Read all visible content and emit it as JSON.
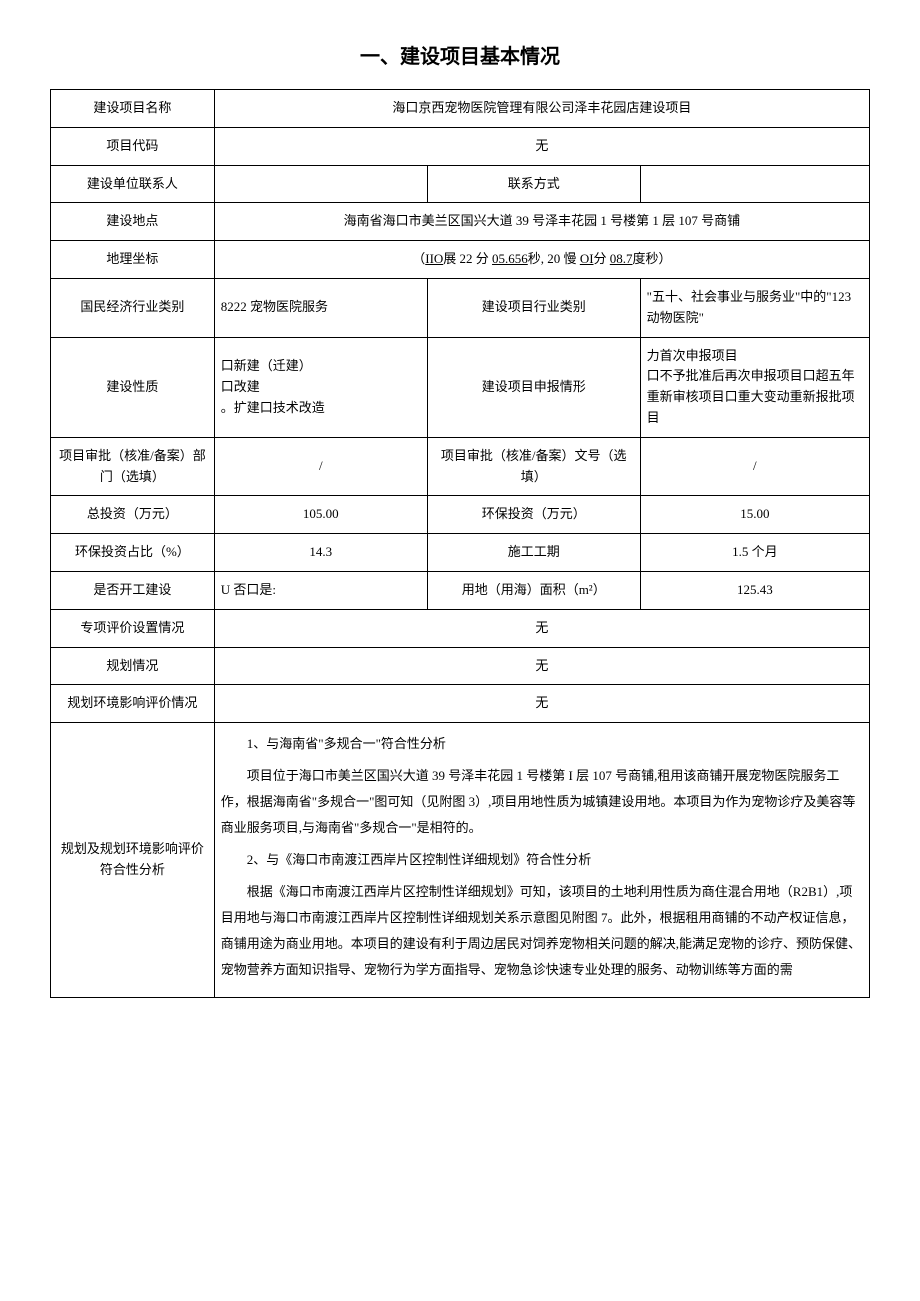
{
  "title": "一、建设项目基本情况",
  "rows": {
    "project_name_label": "建设项目名称",
    "project_name_value": "海口京西宠物医院管理有限公司泽丰花园店建设项目",
    "project_code_label": "项目代码",
    "project_code_value": "无",
    "contact_person_label": "建设单位联系人",
    "contact_person_value": "",
    "contact_method_label": "联系方式",
    "contact_method_value": "",
    "location_label": "建设地点",
    "location_value": "海南省海口市美兰区国兴大道 39 号泽丰花园 1 号楼第 1 层 107 号商铺",
    "coord_label": "地理坐标",
    "coord_prefix": "（",
    "coord_p1": "IIO",
    "coord_p2": "展 22 分 ",
    "coord_p3": "05.656",
    "coord_p4": "秒, 20 慢 ",
    "coord_p5": "OI",
    "coord_p6": "分 ",
    "coord_p7": "08.7",
    "coord_p8": "度秒）",
    "industry_label": "国民经济行业类别",
    "industry_value": "8222 宠物医院服务",
    "proj_industry_label": "建设项目行业类别",
    "proj_industry_value": "\"五十、社会事业与服务业\"中的\"123 动物医院\"",
    "nature_label": "建设性质",
    "nature_line1": "口新建（迁建）",
    "nature_line2": "口改建",
    "nature_line3": "。扩建口技术改造",
    "declare_label": "建设项目申报情形",
    "declare_line1": "力首次申报项目",
    "declare_line2": "口不予批准后再次申报项目口超五年重新审核项目口重大变动重新报批项目",
    "approve_dept_label": "项目审批（核准/备案）部门（选填）",
    "approve_dept_value": "/",
    "approve_no_label": "项目审批（核准/备案）文号（选填）",
    "approve_no_value": "/",
    "invest_label": "总投资（万元）",
    "invest_value": "105.00",
    "env_invest_label": "环保投资（万元）",
    "env_invest_value": "15.00",
    "env_ratio_label": "环保投资占比（%）",
    "env_ratio_value": "14.3",
    "duration_label": "施工工期",
    "duration_value": "1.5 个月",
    "started_label": "是否开工建设",
    "started_value": "U 否口是:",
    "area_label": "用地（用海）面积（m²）",
    "area_value": "125.43",
    "special_eval_label": "专项评价设置情况",
    "special_eval_value": "无",
    "planning_label": "规划情况",
    "planning_value": "无",
    "planning_env_label": "规划环境影响评价情况",
    "planning_env_value": "无",
    "conformity_label": "规划及规划环境影响评价符合性分析",
    "conformity_h1": "1、与海南省\"多规合一\"符合性分析",
    "conformity_p1": "项目位于海口市美兰区国兴大道 39 号泽丰花园 1 号楼第 I 层 107 号商铺,租用该商铺开展宠物医院服务工作，根据海南省\"多规合一\"图可知（见附图 3）,项目用地性质为城镇建设用地。本项目为作为宠物诊疗及美容等商业服务项目,与海南省\"多规合一\"是相符的。",
    "conformity_h2": "2、与《海口市南渡江西岸片区控制性详细规划》符合性分析",
    "conformity_p2": "根据《海口市南渡江西岸片区控制性详细规划》可知，该项目的土地利用性质为商住混合用地（R2B1）,项目用地与海口市南渡江西岸片区控制性详细规划关系示意图见附图 7。此外，根据租用商铺的不动产权证信息，商铺用途为商业用地。本项目的建设有利于周边居民对饲养宠物相关问题的解决,能满足宠物的诊疗、预防保健、宠物营养方面知识指导、宠物行为学方面指导、宠物急诊快速专业处理的服务、动物训练等方面的需"
  }
}
